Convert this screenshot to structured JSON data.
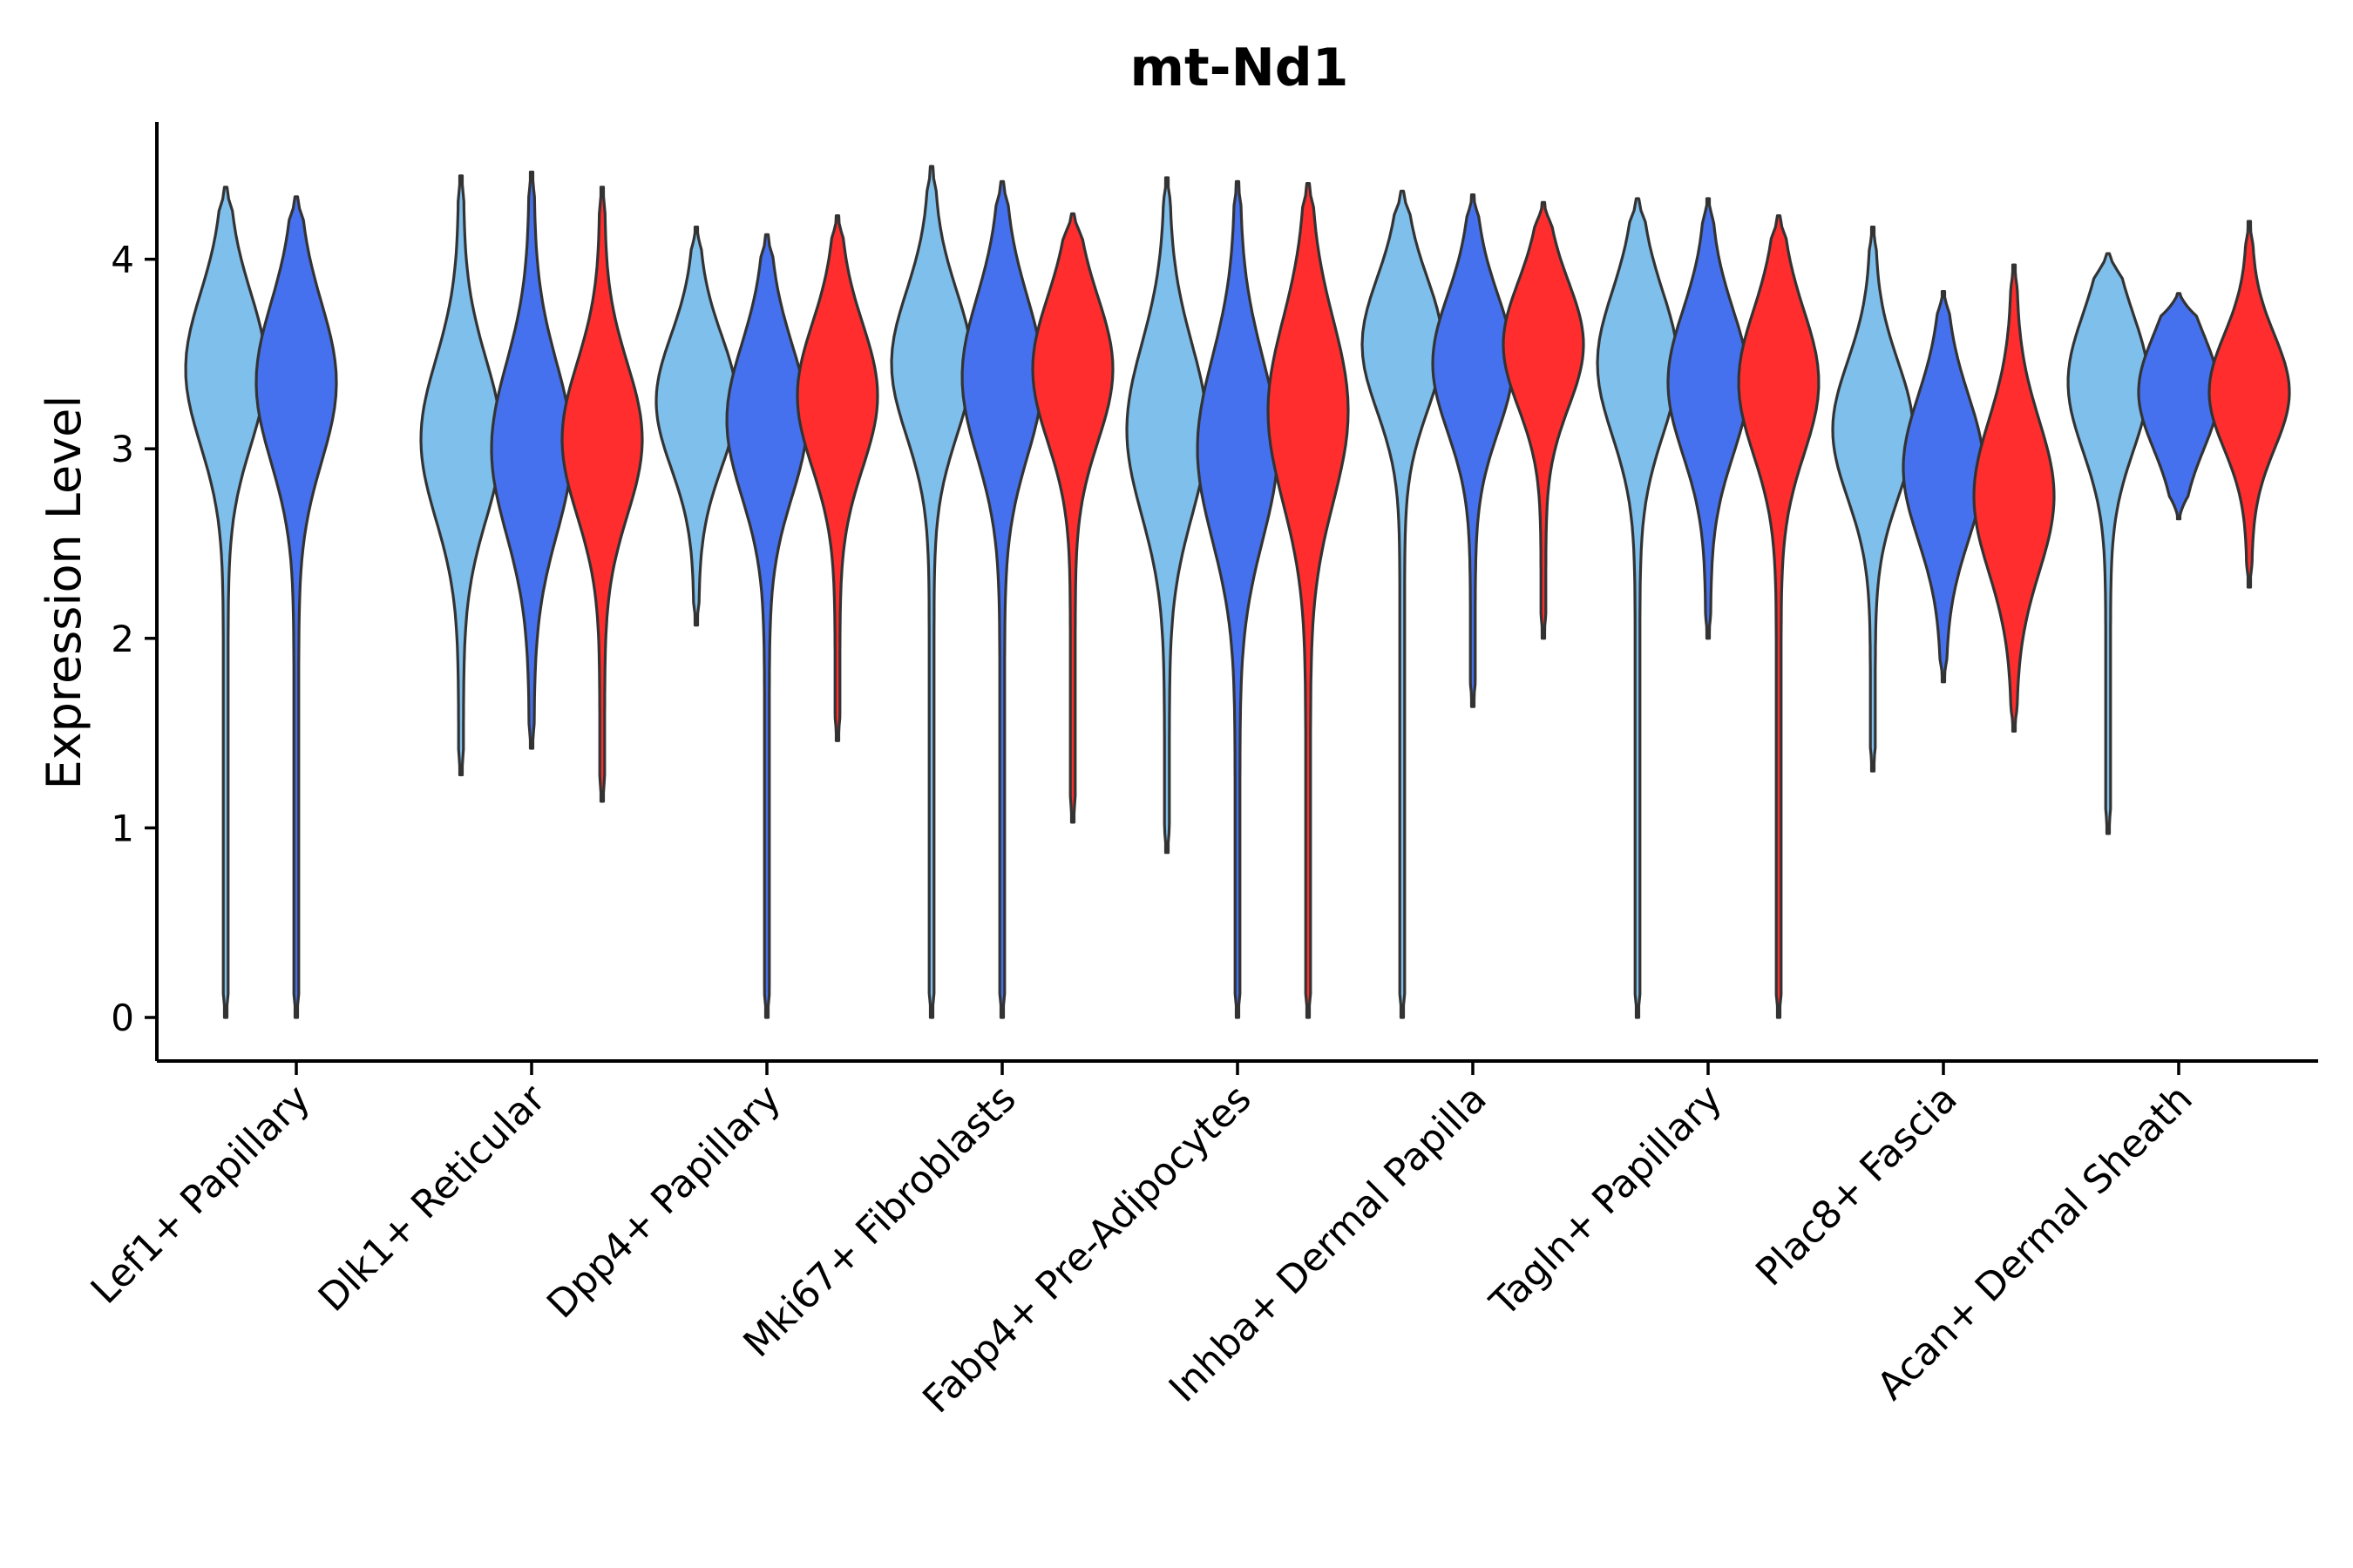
{
  "chart_data": {
    "type": "violin",
    "title": "mt-Nd1",
    "xlabel": "",
    "ylabel": "Expression Level",
    "ylim": [
      -0.22,
      4.75
    ],
    "yticks": [
      0,
      1,
      2,
      3,
      4
    ],
    "grid": false,
    "legend": "none",
    "categories": [
      "Lef1+ Papillary",
      "Dlk1+ Reticular",
      "Dpp4+ Papillary",
      "Mki67+ Fibroblasts",
      "Fabp4+ Pre-Adipocytes",
      "Inhba+ Dermal Papilla",
      "Tagln+ Papillary",
      "Plac8+ Fascia",
      "Acan+ Dermal Sheath"
    ],
    "group_colors": [
      "#7FBFEC",
      "#4671EE",
      "#FF2D2D"
    ],
    "series": [
      {
        "category": "Lef1+ Papillary",
        "violins": [
          {
            "group": 0,
            "min": 0.0,
            "max": 4.38,
            "mode": 3.42,
            "spread": 0.4
          },
          {
            "group": 1,
            "min": 0.0,
            "max": 4.33,
            "mode": 3.35,
            "spread": 0.42
          }
        ]
      },
      {
        "category": "Dlk1+ Reticular",
        "violins": [
          {
            "group": 0,
            "min": 1.28,
            "max": 4.44,
            "mode": 3.05,
            "spread": 0.42
          },
          {
            "group": 1,
            "min": 1.42,
            "max": 4.46,
            "mode": 3.0,
            "spread": 0.45
          },
          {
            "group": 2,
            "min": 1.14,
            "max": 4.38,
            "mode": 3.05,
            "spread": 0.4
          }
        ]
      },
      {
        "category": "Dpp4+ Papillary",
        "violins": [
          {
            "group": 0,
            "min": 2.07,
            "max": 4.17,
            "mode": 3.25,
            "spread": 0.35
          },
          {
            "group": 1,
            "min": 0.0,
            "max": 4.13,
            "mode": 3.15,
            "spread": 0.4
          },
          {
            "group": 2,
            "min": 1.46,
            "max": 4.23,
            "mode": 3.28,
            "spread": 0.38
          }
        ]
      },
      {
        "category": "Mki67+ Fibroblasts",
        "violins": [
          {
            "group": 0,
            "min": 0.0,
            "max": 4.49,
            "mode": 3.45,
            "spread": 0.38
          },
          {
            "group": 1,
            "min": 0.0,
            "max": 4.41,
            "mode": 3.38,
            "spread": 0.42
          },
          {
            "group": 2,
            "min": 1.03,
            "max": 4.24,
            "mode": 3.42,
            "spread": 0.38
          }
        ]
      },
      {
        "category": "Fabp4+ Pre-Adipocytes",
        "violins": [
          {
            "group": 0,
            "min": 0.87,
            "max": 4.43,
            "mode": 3.1,
            "spread": 0.45
          },
          {
            "group": 1,
            "min": 0.0,
            "max": 4.41,
            "mode": 3.0,
            "spread": 0.48
          },
          {
            "group": 2,
            "min": 0.0,
            "max": 4.4,
            "mode": 3.2,
            "spread": 0.48
          }
        ]
      },
      {
        "category": "Inhba+ Dermal Papilla",
        "violins": [
          {
            "group": 0,
            "min": 0.0,
            "max": 4.36,
            "mode": 3.55,
            "spread": 0.35
          },
          {
            "group": 1,
            "min": 1.64,
            "max": 4.34,
            "mode": 3.45,
            "spread": 0.36
          },
          {
            "group": 2,
            "min": 2.0,
            "max": 4.3,
            "mode": 3.55,
            "spread": 0.33
          }
        ]
      },
      {
        "category": "Tagln+ Papillary",
        "violins": [
          {
            "group": 0,
            "min": 0.0,
            "max": 4.32,
            "mode": 3.45,
            "spread": 0.38
          },
          {
            "group": 1,
            "min": 2.0,
            "max": 4.32,
            "mode": 3.35,
            "spread": 0.38
          },
          {
            "group": 2,
            "min": 0.0,
            "max": 4.23,
            "mode": 3.35,
            "spread": 0.38
          }
        ]
      },
      {
        "category": "Plac8+ Fascia",
        "violins": [
          {
            "group": 0,
            "min": 1.3,
            "max": 4.17,
            "mode": 3.1,
            "spread": 0.36
          },
          {
            "group": 1,
            "min": 1.77,
            "max": 3.83,
            "mode": 2.9,
            "spread": 0.38
          },
          {
            "group": 2,
            "min": 1.51,
            "max": 3.97,
            "mode": 2.75,
            "spread": 0.4
          }
        ]
      },
      {
        "category": "Acan+ Dermal Sheath",
        "violins": [
          {
            "group": 0,
            "min": 0.97,
            "max": 4.03,
            "mode": 3.35,
            "spread": 0.36
          },
          {
            "group": 1,
            "min": 2.63,
            "max": 3.82,
            "mode": 3.3,
            "spread": 0.3
          },
          {
            "group": 2,
            "min": 2.27,
            "max": 4.2,
            "mode": 3.3,
            "spread": 0.3
          }
        ]
      }
    ]
  }
}
